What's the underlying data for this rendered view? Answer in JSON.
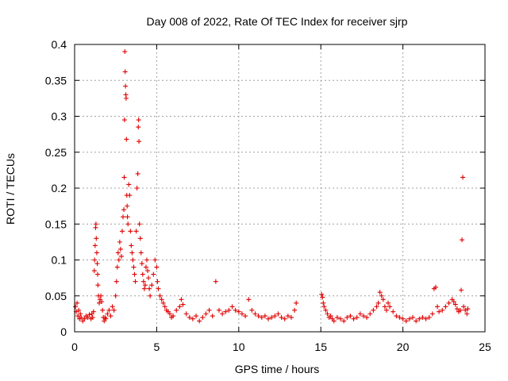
{
  "chart_data": {
    "type": "scatter",
    "title": "Day 008 of 2022, Rate Of TEC Index for receiver sjrp",
    "xlabel": "GPS time / hours",
    "ylabel": "ROTI / TECUs",
    "xlim": [
      0,
      25
    ],
    "ylim": [
      0,
      0.4
    ],
    "xticks": [
      0,
      5,
      10,
      15,
      20,
      25
    ],
    "xtick_labels": [
      "0",
      "5",
      "10",
      "15",
      "20",
      "25"
    ],
    "yticks": [
      0,
      0.05,
      0.1,
      0.15,
      0.2,
      0.25,
      0.3,
      0.35,
      0.4
    ],
    "ytick_labels": [
      "0",
      "0.05",
      "0.1",
      "0.15",
      "0.2",
      "0.25",
      "0.3",
      "0.35",
      "0.4"
    ],
    "grid": true,
    "marker": "+",
    "color": "#e00000",
    "series": [
      {
        "name": "ROTI",
        "points": [
          [
            0.05,
            0.035
          ],
          [
            0.1,
            0.028
          ],
          [
            0.15,
            0.04
          ],
          [
            0.2,
            0.022
          ],
          [
            0.25,
            0.03
          ],
          [
            0.3,
            0.018
          ],
          [
            0.35,
            0.025
          ],
          [
            0.4,
            0.02
          ],
          [
            0.5,
            0.015
          ],
          [
            0.6,
            0.018
          ],
          [
            0.7,
            0.022
          ],
          [
            0.8,
            0.02
          ],
          [
            0.9,
            0.024
          ],
          [
            1.0,
            0.018
          ],
          [
            1.05,
            0.025
          ],
          [
            1.1,
            0.02
          ],
          [
            1.15,
            0.028
          ],
          [
            1.2,
            0.085
          ],
          [
            1.22,
            0.1
          ],
          [
            1.25,
            0.12
          ],
          [
            1.28,
            0.145
          ],
          [
            1.3,
            0.15
          ],
          [
            1.32,
            0.13
          ],
          [
            1.35,
            0.11
          ],
          [
            1.38,
            0.095
          ],
          [
            1.4,
            0.08
          ],
          [
            1.42,
            0.065
          ],
          [
            1.45,
            0.05
          ],
          [
            1.5,
            0.04
          ],
          [
            1.55,
            0.045
          ],
          [
            1.6,
            0.05
          ],
          [
            1.65,
            0.042
          ],
          [
            1.7,
            0.03
          ],
          [
            1.75,
            0.02
          ],
          [
            1.8,
            0.015
          ],
          [
            1.85,
            0.02
          ],
          [
            1.9,
            0.018
          ],
          [
            2.0,
            0.025
          ],
          [
            2.1,
            0.03
          ],
          [
            2.2,
            0.022
          ],
          [
            2.3,
            0.035
          ],
          [
            2.4,
            0.03
          ],
          [
            2.5,
            0.05
          ],
          [
            2.55,
            0.07
          ],
          [
            2.6,
            0.09
          ],
          [
            2.65,
            0.11
          ],
          [
            2.7,
            0.1
          ],
          [
            2.75,
            0.125
          ],
          [
            2.8,
            0.115
          ],
          [
            2.85,
            0.105
          ],
          [
            2.9,
            0.14
          ],
          [
            2.95,
            0.16
          ],
          [
            3.0,
            0.17
          ],
          [
            3.02,
            0.215
          ],
          [
            3.04,
            0.295
          ],
          [
            3.06,
            0.39
          ],
          [
            3.08,
            0.362
          ],
          [
            3.1,
            0.342
          ],
          [
            3.12,
            0.33
          ],
          [
            3.14,
            0.325
          ],
          [
            3.16,
            0.268
          ],
          [
            3.18,
            0.19
          ],
          [
            3.2,
            0.175
          ],
          [
            3.22,
            0.16
          ],
          [
            3.25,
            0.15
          ],
          [
            3.3,
            0.205
          ],
          [
            3.35,
            0.19
          ],
          [
            3.4,
            0.14
          ],
          [
            3.45,
            0.12
          ],
          [
            3.5,
            0.11
          ],
          [
            3.55,
            0.1
          ],
          [
            3.6,
            0.09
          ],
          [
            3.65,
            0.08
          ],
          [
            3.7,
            0.07
          ],
          [
            3.75,
            0.14
          ],
          [
            3.8,
            0.2
          ],
          [
            3.85,
            0.22
          ],
          [
            3.88,
            0.285
          ],
          [
            3.9,
            0.295
          ],
          [
            3.92,
            0.265
          ],
          [
            3.95,
            0.15
          ],
          [
            4.0,
            0.13
          ],
          [
            4.05,
            0.11
          ],
          [
            4.1,
            0.095
          ],
          [
            4.15,
            0.08
          ],
          [
            4.2,
            0.07
          ],
          [
            4.25,
            0.06
          ],
          [
            4.3,
            0.065
          ],
          [
            4.35,
            0.09
          ],
          [
            4.4,
            0.1
          ],
          [
            4.45,
            0.085
          ],
          [
            4.5,
            0.075
          ],
          [
            4.55,
            0.06
          ],
          [
            4.6,
            0.05
          ],
          [
            4.7,
            0.065
          ],
          [
            4.8,
            0.08
          ],
          [
            4.9,
            0.1
          ],
          [
            5.0,
            0.09
          ],
          [
            5.05,
            0.07
          ],
          [
            5.1,
            0.06
          ],
          [
            5.2,
            0.05
          ],
          [
            5.3,
            0.045
          ],
          [
            5.4,
            0.04
          ],
          [
            5.5,
            0.035
          ],
          [
            5.6,
            0.03
          ],
          [
            5.7,
            0.028
          ],
          [
            5.8,
            0.025
          ],
          [
            5.9,
            0.02
          ],
          [
            6.0,
            0.022
          ],
          [
            6.2,
            0.03
          ],
          [
            6.4,
            0.035
          ],
          [
            6.5,
            0.045
          ],
          [
            6.6,
            0.038
          ],
          [
            6.8,
            0.025
          ],
          [
            7.0,
            0.02
          ],
          [
            7.2,
            0.018
          ],
          [
            7.4,
            0.022
          ],
          [
            7.6,
            0.015
          ],
          [
            7.8,
            0.02
          ],
          [
            8.0,
            0.025
          ],
          [
            8.2,
            0.03
          ],
          [
            8.4,
            0.022
          ],
          [
            8.6,
            0.07
          ],
          [
            8.8,
            0.03
          ],
          [
            9.0,
            0.025
          ],
          [
            9.2,
            0.028
          ],
          [
            9.4,
            0.03
          ],
          [
            9.6,
            0.035
          ],
          [
            9.8,
            0.03
          ],
          [
            10.0,
            0.028
          ],
          [
            10.2,
            0.025
          ],
          [
            10.4,
            0.022
          ],
          [
            10.6,
            0.045
          ],
          [
            10.8,
            0.03
          ],
          [
            11.0,
            0.025
          ],
          [
            11.2,
            0.022
          ],
          [
            11.4,
            0.02
          ],
          [
            11.6,
            0.022
          ],
          [
            11.8,
            0.018
          ],
          [
            12.0,
            0.02
          ],
          [
            12.2,
            0.022
          ],
          [
            12.4,
            0.025
          ],
          [
            12.6,
            0.02
          ],
          [
            12.8,
            0.018
          ],
          [
            13.0,
            0.022
          ],
          [
            13.2,
            0.02
          ],
          [
            13.4,
            0.03
          ],
          [
            13.5,
            0.04
          ],
          [
            15.05,
            0.052
          ],
          [
            15.1,
            0.048
          ],
          [
            15.15,
            0.04
          ],
          [
            15.2,
            0.035
          ],
          [
            15.3,
            0.03
          ],
          [
            15.4,
            0.025
          ],
          [
            15.5,
            0.02
          ],
          [
            15.6,
            0.022
          ],
          [
            15.7,
            0.018
          ],
          [
            15.8,
            0.015
          ],
          [
            16.0,
            0.02
          ],
          [
            16.2,
            0.018
          ],
          [
            16.4,
            0.015
          ],
          [
            16.6,
            0.02
          ],
          [
            16.8,
            0.022
          ],
          [
            17.0,
            0.018
          ],
          [
            17.2,
            0.02
          ],
          [
            17.4,
            0.025
          ],
          [
            17.6,
            0.022
          ],
          [
            17.8,
            0.02
          ],
          [
            18.0,
            0.025
          ],
          [
            18.2,
            0.03
          ],
          [
            18.4,
            0.035
          ],
          [
            18.5,
            0.04
          ],
          [
            18.6,
            0.055
          ],
          [
            18.7,
            0.05
          ],
          [
            18.8,
            0.045
          ],
          [
            18.9,
            0.035
          ],
          [
            19.0,
            0.03
          ],
          [
            19.1,
            0.04
          ],
          [
            19.2,
            0.035
          ],
          [
            19.4,
            0.028
          ],
          [
            19.6,
            0.022
          ],
          [
            19.8,
            0.02
          ],
          [
            20.0,
            0.018
          ],
          [
            20.2,
            0.015
          ],
          [
            20.4,
            0.018
          ],
          [
            20.6,
            0.02
          ],
          [
            20.8,
            0.015
          ],
          [
            21.0,
            0.018
          ],
          [
            21.2,
            0.02
          ],
          [
            21.4,
            0.018
          ],
          [
            21.6,
            0.02
          ],
          [
            21.8,
            0.025
          ],
          [
            21.9,
            0.06
          ],
          [
            22.0,
            0.062
          ],
          [
            22.1,
            0.035
          ],
          [
            22.2,
            0.028
          ],
          [
            22.4,
            0.03
          ],
          [
            22.6,
            0.035
          ],
          [
            22.8,
            0.04
          ],
          [
            23.0,
            0.045
          ],
          [
            23.1,
            0.042
          ],
          [
            23.2,
            0.038
          ],
          [
            23.3,
            0.032
          ],
          [
            23.4,
            0.028
          ],
          [
            23.5,
            0.03
          ],
          [
            23.55,
            0.058
          ],
          [
            23.6,
            0.128
          ],
          [
            23.65,
            0.215
          ],
          [
            23.7,
            0.035
          ],
          [
            23.8,
            0.03
          ],
          [
            23.9,
            0.025
          ],
          [
            23.95,
            0.032
          ]
        ]
      }
    ]
  }
}
